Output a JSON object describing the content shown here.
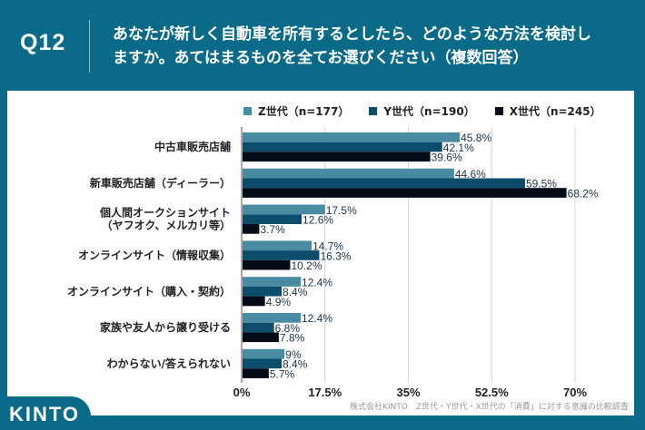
{
  "header": {
    "question_number": "Q12",
    "question_line1": "あなたが新しく自動車を所有するとしたら、どのような方法を検討し",
    "question_line2": "ますか。あてはまるものを全てお選びください（複数回答）"
  },
  "logo": "KINTO",
  "source": "株式会社KINTO　Z世代・Y世代・X世代の「消費」に対する意識の比較調査",
  "chart_data": {
    "type": "bar",
    "orientation": "horizontal",
    "title": "あなたが新しく自動車を所有するとしたら、どのような方法を検討しますか。あてはまるものを全てお選びください（複数回答）",
    "xlabel": "",
    "ylabel": "",
    "xlim": [
      0,
      70
    ],
    "xticks": [
      0,
      17.5,
      35,
      52.5,
      70
    ],
    "xtick_labels": [
      "0%",
      "17.5%",
      "35%",
      "52.5%",
      "70%"
    ],
    "grid": true,
    "legend_position": "top",
    "categories": [
      "中古車販売店舗",
      "新車販売店舗（ディーラー）",
      "個人間オークションサイト\n（ヤフオク、メルカリ等）",
      "オンラインサイト（情報収集）",
      "オンラインサイト（購入・契約）",
      "家族や友人から譲り受ける",
      "わからない/答えられない"
    ],
    "series": [
      {
        "name": "Z世代（n=177）",
        "color": "#4a8ba4",
        "values": [
          45.8,
          44.6,
          17.5,
          14.7,
          12.4,
          12.4,
          9
        ]
      },
      {
        "name": "Y世代（n=190）",
        "color": "#0c4d6c",
        "values": [
          42.1,
          59.5,
          12.6,
          16.3,
          8.4,
          6.8,
          8.4
        ]
      },
      {
        "name": "X世代（n=245）",
        "color": "#050c18",
        "values": [
          39.6,
          68.2,
          3.7,
          10.2,
          4.9,
          7.8,
          5.7
        ]
      }
    ],
    "value_labels": [
      [
        "45.8%",
        "44.6%",
        "17.5%",
        "14.7%",
        "12.4%",
        "12.4%",
        "9%"
      ],
      [
        "42.1%",
        "59.5%",
        "12.6%",
        "16.3%",
        "8.4%",
        "6.8%",
        "8.4%"
      ],
      [
        "39.6%",
        "68.2%",
        "3.7%",
        "10.2%",
        "4.9%",
        "7.8%",
        "5.7%"
      ]
    ]
  }
}
